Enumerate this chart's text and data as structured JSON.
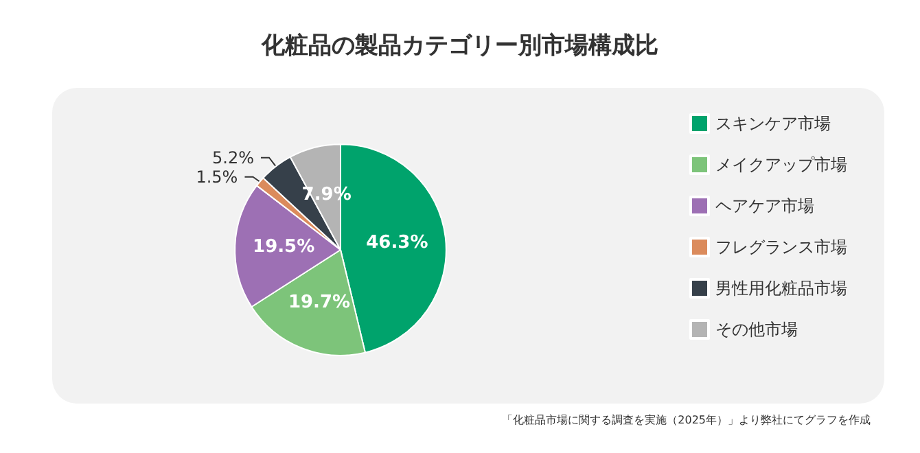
{
  "chart_data": {
    "type": "pie",
    "title": "化粧品の製品カテゴリー別市場構成比",
    "categories": [
      "スキンケア市場",
      "メイクアップ市場",
      "ヘアケア市場",
      "フレグランス市場",
      "男性用化粧品市場",
      "その他市場"
    ],
    "values": [
      46.3,
      19.7,
      19.5,
      1.5,
      5.2,
      7.9
    ],
    "value_labels": [
      "46.3%",
      "19.7%",
      "19.5%",
      "1.5%",
      "5.2%",
      "7.9%"
    ],
    "colors": [
      "#00a36c",
      "#7dc47a",
      "#9d70b4",
      "#db8b5c",
      "#36404a",
      "#b4b4b4"
    ],
    "legend": "right",
    "annotations": [
      "「化粧品市場に関する調査を実施（2025年）」より弊社にてグラフを作成"
    ]
  }
}
